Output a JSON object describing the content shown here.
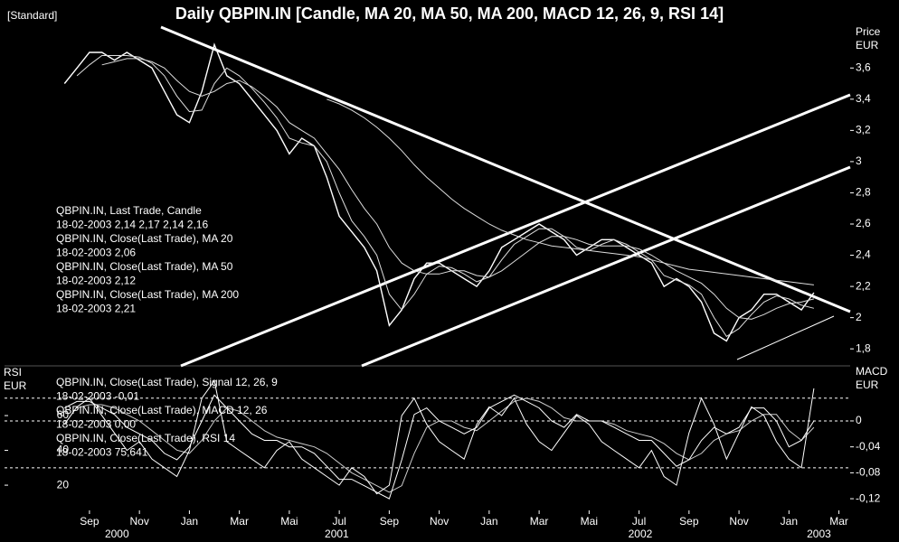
{
  "header": {
    "mode": "[Standard]"
  },
  "chart_data": [
    {
      "type": "line",
      "title": "Daily QBPIN.IN [Candle, MA 20, MA 50, MA 200, MACD 12, 26, 9, RSI 14]",
      "y_axis_label": [
        "Price",
        "EUR"
      ],
      "y_axis_side": "right",
      "x": [
        0,
        0.5,
        1,
        1.5,
        2,
        2.5,
        3,
        3.5,
        4,
        4.5,
        5,
        5.5,
        6,
        6.5,
        7,
        7.5,
        8,
        8.5,
        9,
        9.5,
        10,
        10.5,
        11,
        11.5,
        12,
        12.5,
        13,
        13.5,
        14,
        14.5,
        15,
        15.5,
        16,
        16.5,
        17,
        17.5,
        18,
        18.5,
        19,
        19.5,
        20,
        20.5,
        21,
        21.5,
        22,
        22.5,
        23,
        23.5,
        24,
        24.5,
        25,
        25.5,
        26,
        26.5,
        27,
        27.5,
        28,
        28.5,
        29,
        29.5,
        30
      ],
      "xlim": [
        -2.4,
        31.45
      ],
      "ylim": [
        1.72,
        3.92
      ],
      "yticks": [
        {
          "value": 1.8,
          "label": "1,8"
        },
        2,
        {
          "value": 2.2,
          "label": "2,2"
        },
        {
          "value": 2.4,
          "label": "2,4"
        },
        {
          "value": 2.6,
          "label": "2,6"
        },
        {
          "value": 2.8,
          "label": "2,8"
        },
        3,
        {
          "value": 3.2,
          "label": "3,2"
        },
        {
          "value": 3.4,
          "label": "3,4"
        },
        {
          "value": 3.6,
          "label": "3,6"
        }
      ],
      "series": [
        {
          "name": "QBPIN.IN, Last Trade, Candle",
          "legend_text": "18-02-2003 2,14 2,17 2,14 2,16",
          "color": "#ffffff",
          "values": [
            3.5,
            3.6,
            3.7,
            3.7,
            3.65,
            3.7,
            3.65,
            3.6,
            3.45,
            3.3,
            3.25,
            3.45,
            3.75,
            3.55,
            3.5,
            3.4,
            3.3,
            3.2,
            3.05,
            3.15,
            3.1,
            2.9,
            2.65,
            2.55,
            2.45,
            2.3,
            1.95,
            2.05,
            2.25,
            2.35,
            2.35,
            2.3,
            2.25,
            2.2,
            2.3,
            2.45,
            2.5,
            2.55,
            2.6,
            2.55,
            2.5,
            2.4,
            2.45,
            2.5,
            2.5,
            2.45,
            2.4,
            2.35,
            2.2,
            2.25,
            2.2,
            2.1,
            1.9,
            1.85,
            2.0,
            2.05,
            2.15,
            2.15,
            2.1,
            2.05,
            2.16
          ]
        },
        {
          "name": "QBPIN.IN, Close(Last Trade), MA 20",
          "legend_text": "18-02-2003 2,06",
          "color": "#dddddd",
          "values": [
            null,
            3.55,
            3.62,
            3.68,
            3.68,
            3.68,
            3.67,
            3.63,
            3.55,
            3.42,
            3.32,
            3.33,
            3.5,
            3.6,
            3.55,
            3.47,
            3.38,
            3.28,
            3.15,
            3.12,
            3.1,
            3.0,
            2.8,
            2.62,
            2.52,
            2.4,
            2.15,
            2.05,
            2.15,
            2.28,
            2.33,
            2.32,
            2.28,
            2.23,
            2.26,
            2.37,
            2.47,
            2.52,
            2.57,
            2.57,
            2.52,
            2.45,
            2.43,
            2.47,
            2.5,
            2.47,
            2.42,
            2.37,
            2.27,
            2.24,
            2.21,
            2.15,
            2.0,
            1.88,
            1.93,
            2.02,
            2.1,
            2.14,
            2.12,
            2.08,
            2.06
          ]
        },
        {
          "name": "QBPIN.IN, Close(Last Trade), MA 50",
          "legend_text": "18-02-2003 2,12",
          "color": "#dddddd",
          "values": [
            null,
            null,
            null,
            3.62,
            3.64,
            3.66,
            3.66,
            3.64,
            3.6,
            3.52,
            3.45,
            3.42,
            3.45,
            3.5,
            3.52,
            3.48,
            3.42,
            3.35,
            3.25,
            3.2,
            3.15,
            3.05,
            2.95,
            2.82,
            2.7,
            2.6,
            2.45,
            2.35,
            2.3,
            2.28,
            2.28,
            2.3,
            2.3,
            2.27,
            2.26,
            2.3,
            2.36,
            2.42,
            2.48,
            2.52,
            2.52,
            2.5,
            2.47,
            2.46,
            2.46,
            2.46,
            2.44,
            2.4,
            2.35,
            2.3,
            2.26,
            2.22,
            2.15,
            2.06,
            2.0,
            1.99,
            2.02,
            2.06,
            2.09,
            2.1,
            2.12
          ]
        },
        {
          "name": "QBPIN.IN, Close(Last Trade), MA 200",
          "legend_text": "18-02-2003 2,21",
          "color": "#dddddd",
          "values": [
            null,
            null,
            null,
            null,
            null,
            null,
            null,
            null,
            null,
            null,
            null,
            null,
            null,
            null,
            null,
            null,
            null,
            null,
            null,
            null,
            null,
            3.4,
            3.37,
            3.33,
            3.28,
            3.22,
            3.15,
            3.07,
            2.98,
            2.9,
            2.83,
            2.76,
            2.7,
            2.65,
            2.6,
            2.56,
            2.53,
            2.5,
            2.48,
            2.46,
            2.45,
            2.44,
            2.43,
            2.42,
            2.41,
            2.4,
            2.39,
            2.37,
            2.35,
            2.33,
            2.31,
            2.3,
            2.29,
            2.28,
            2.27,
            2.26,
            2.25,
            2.24,
            2.23,
            2.22,
            2.21
          ]
        }
      ]
    },
    {
      "type": "line",
      "y_axis_label": [
        "RSI",
        "EUR"
      ],
      "y2_axis_label": [
        "MACD",
        "EUR"
      ],
      "y_axis_side": "left",
      "x": [
        0,
        0.5,
        1,
        1.5,
        2,
        2.5,
        3,
        3.5,
        4,
        4.5,
        5,
        5.5,
        6,
        6.5,
        7,
        7.5,
        8,
        8.5,
        9,
        9.5,
        10,
        10.5,
        11,
        11.5,
        12,
        12.5,
        13,
        13.5,
        14,
        14.5,
        15,
        15.5,
        16,
        16.5,
        17,
        17.5,
        18,
        18.5,
        19,
        19.5,
        20,
        20.5,
        21,
        21.5,
        22,
        22.5,
        23,
        23.5,
        24,
        24.5,
        25,
        25.5,
        26,
        26.5,
        27,
        27.5,
        28,
        28.5,
        29,
        29.5,
        30
      ],
      "xlim": [
        -2.4,
        31.45
      ],
      "xticks": [
        {
          "value": 1,
          "label": "Sep"
        },
        {
          "value": 3,
          "label": "Nov"
        },
        {
          "value": 5,
          "label": "Jan"
        },
        {
          "value": 7,
          "label": "Mar"
        },
        {
          "value": 9,
          "label": "Mai"
        },
        {
          "value": 11,
          "label": "Jul"
        },
        {
          "value": 13,
          "label": "Sep"
        },
        {
          "value": 15,
          "label": "Nov"
        },
        {
          "value": 17,
          "label": "Jan"
        },
        {
          "value": 19,
          "label": "Mar"
        },
        {
          "value": 21,
          "label": "Mai"
        },
        {
          "value": 23,
          "label": "Jul"
        },
        {
          "value": 25,
          "label": "Sep"
        },
        {
          "value": 27,
          "label": "Nov"
        },
        {
          "value": 29,
          "label": "Jan"
        },
        {
          "value": 31,
          "label": "Mar"
        }
      ],
      "year_ticks": [
        {
          "value": 2.1,
          "label": "2000"
        },
        {
          "value": 10.9,
          "label": "2001"
        },
        {
          "value": 23.05,
          "label": "2002"
        },
        {
          "value": 30.2,
          "label": "2003"
        }
      ],
      "ylim": [
        5.5,
        86
      ],
      "yticks": [
        20,
        40,
        60
      ],
      "y2lim": [
        -0.138,
        0.078
      ],
      "y2ticks": [
        {
          "value": -0.12,
          "label": "-0,12"
        },
        {
          "value": -0.08,
          "label": "-0,08"
        },
        {
          "value": -0.04,
          "label": "-0,04"
        },
        0
      ],
      "rsi_levels": [
        30,
        70
      ],
      "series": [
        {
          "name": "QBPIN.IN, Close(Last Trade), Signal 12, 26, 9",
          "legend_text": "18-02-2003 -0,01",
          "color": "#cccccc",
          "axis": "y2",
          "values": [
            null,
            0.02,
            0.025,
            0.025,
            0.02,
            0.01,
            0.0,
            -0.015,
            -0.03,
            -0.045,
            -0.05,
            -0.03,
            0.0,
            0.02,
            0.015,
            0.0,
            -0.015,
            -0.025,
            -0.03,
            -0.035,
            -0.04,
            -0.05,
            -0.065,
            -0.08,
            -0.09,
            -0.1,
            -0.11,
            -0.1,
            -0.05,
            -0.01,
            0.0,
            0.0,
            -0.01,
            -0.015,
            0.0,
            0.015,
            0.03,
            0.035,
            0.03,
            0.02,
            0.005,
            0,
            0,
            0,
            -0.005,
            -0.015,
            -0.02,
            -0.025,
            -0.035,
            -0.05,
            -0.06,
            -0.05,
            -0.03,
            -0.02,
            -0.015,
            0.0,
            0.01,
            0.01,
            -0.015,
            -0.03,
            -0.01
          ]
        },
        {
          "name": "QBPIN.IN, Close(Last Trade), MACD 12, 26",
          "legend_text": "18-02-2003 0,00",
          "color": "#ffffff",
          "axis": "y2",
          "values": [
            0.02,
            0.03,
            0.03,
            0.02,
            0.01,
            -0.01,
            -0.02,
            -0.03,
            -0.05,
            -0.06,
            -0.04,
            0.0,
            0.04,
            0.02,
            0.0,
            -0.02,
            -0.03,
            -0.03,
            -0.04,
            -0.04,
            -0.05,
            -0.07,
            -0.09,
            -0.09,
            -0.1,
            -0.11,
            -0.12,
            -0.06,
            0.01,
            0.02,
            0.0,
            -0.01,
            -0.02,
            -0.01,
            0.02,
            0.03,
            0.04,
            0.03,
            0.02,
            0.0,
            -0.01,
            0.01,
            0.0,
            0.0,
            -0.01,
            -0.02,
            -0.03,
            -0.03,
            -0.05,
            -0.07,
            -0.06,
            -0.03,
            -0.01,
            -0.02,
            -0.01,
            0.02,
            0.02,
            0.0,
            -0.04,
            -0.03,
            0.0
          ]
        },
        {
          "name": "QBPIN.IN, Close(Last Trade), RSI 14",
          "legend_text": "18-02-2003 75,641",
          "color": "#ffffff",
          "values": [
            55,
            65,
            70,
            60,
            50,
            40,
            45,
            35,
            30,
            25,
            40,
            70,
            80,
            45,
            40,
            35,
            30,
            40,
            45,
            35,
            30,
            25,
            20,
            30,
            25,
            15,
            20,
            60,
            70,
            55,
            45,
            40,
            35,
            55,
            65,
            60,
            70,
            55,
            45,
            40,
            50,
            60,
            55,
            45,
            40,
            35,
            30,
            40,
            25,
            20,
            50,
            70,
            55,
            35,
            50,
            65,
            60,
            45,
            35,
            30,
            75.641
          ]
        }
      ]
    }
  ]
}
